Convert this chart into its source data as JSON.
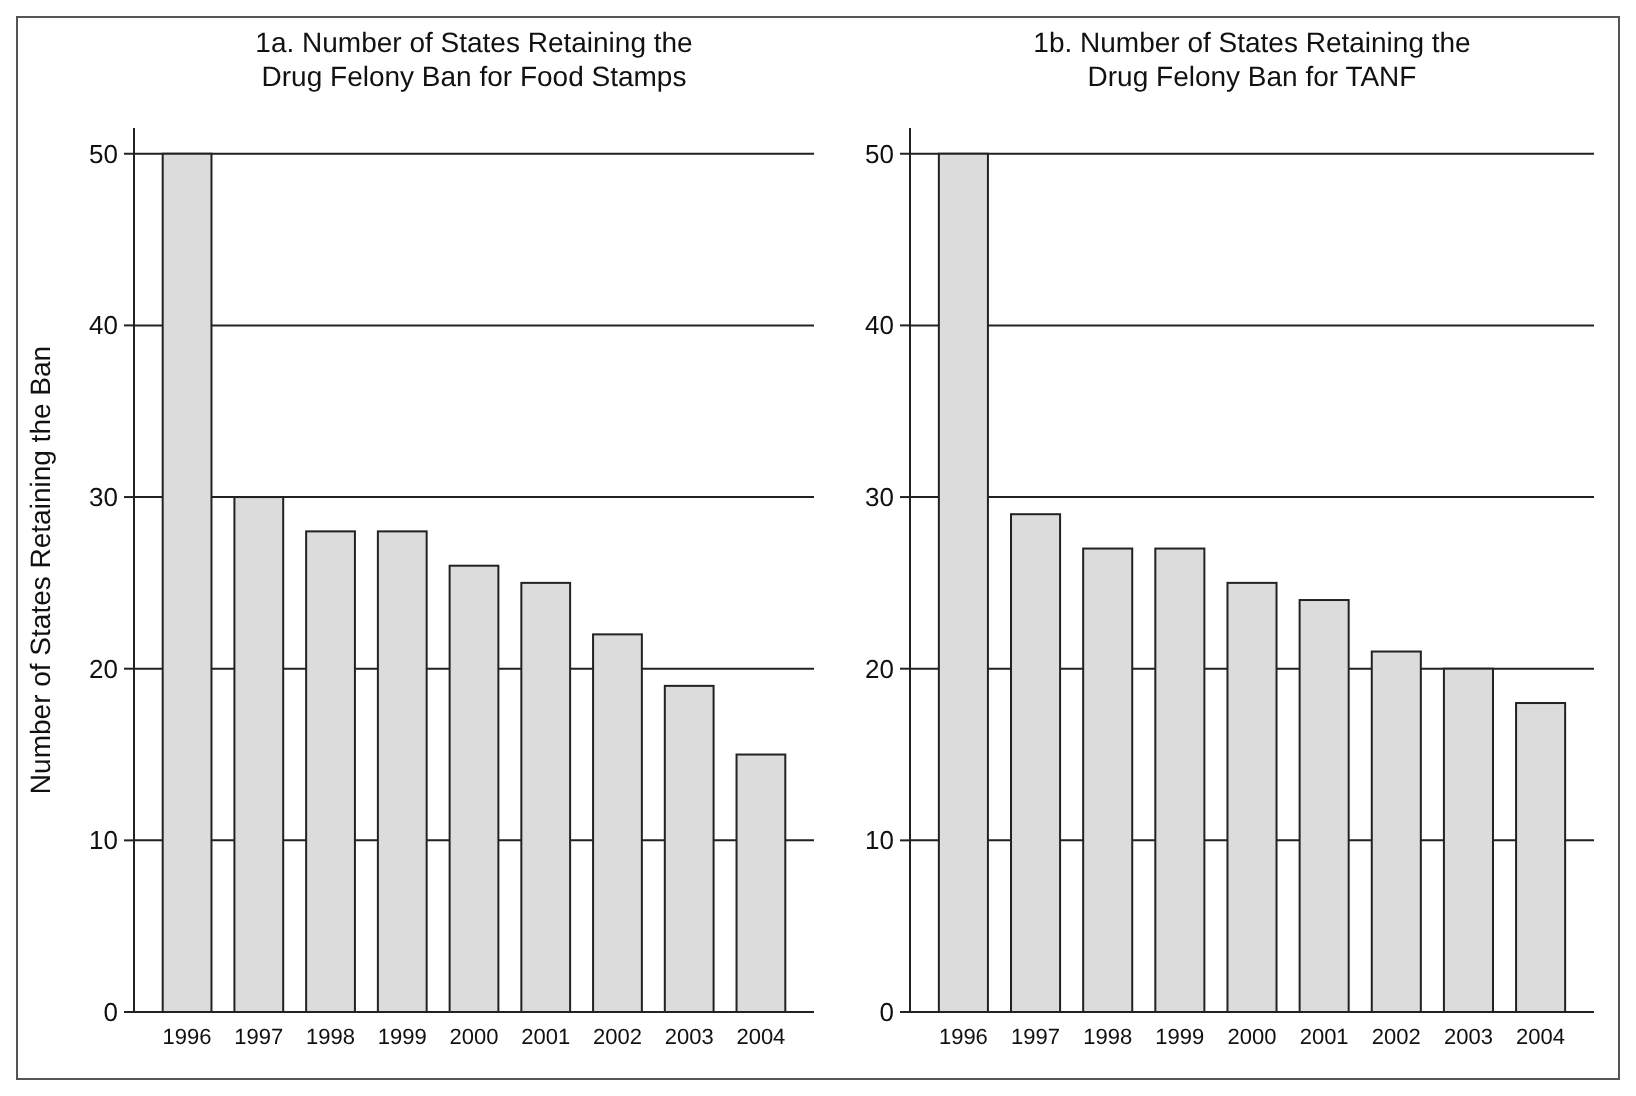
{
  "chart_data": [
    {
      "type": "bar",
      "title": "1a. Number of States Retaining the\nDrug Felony Ban for Food Stamps",
      "ylabel": "Number of States Retaining the Ban",
      "categories": [
        "1996",
        "1997",
        "1998",
        "1999",
        "2000",
        "2001",
        "2002",
        "2003",
        "2004"
      ],
      "values": [
        50,
        30,
        28,
        28,
        26,
        25,
        22,
        19,
        15
      ],
      "color": "#dcdcdc",
      "ylim": [
        0,
        51.5
      ],
      "yticks": [
        0,
        10,
        20,
        30,
        40,
        50
      ],
      "grid": "y"
    },
    {
      "type": "bar",
      "title": "1b. Number of States Retaining the\nDrug Felony Ban for TANF",
      "categories": [
        "1996",
        "1997",
        "1998",
        "1999",
        "2000",
        "2001",
        "2002",
        "2003",
        "2004"
      ],
      "values": [
        50,
        29,
        27,
        27,
        25,
        24,
        21,
        20,
        18
      ],
      "color": "#dcdcdc",
      "ylim": [
        0,
        51.5
      ],
      "yticks": [
        0,
        10,
        20,
        30,
        40,
        50
      ],
      "grid": "y"
    }
  ]
}
